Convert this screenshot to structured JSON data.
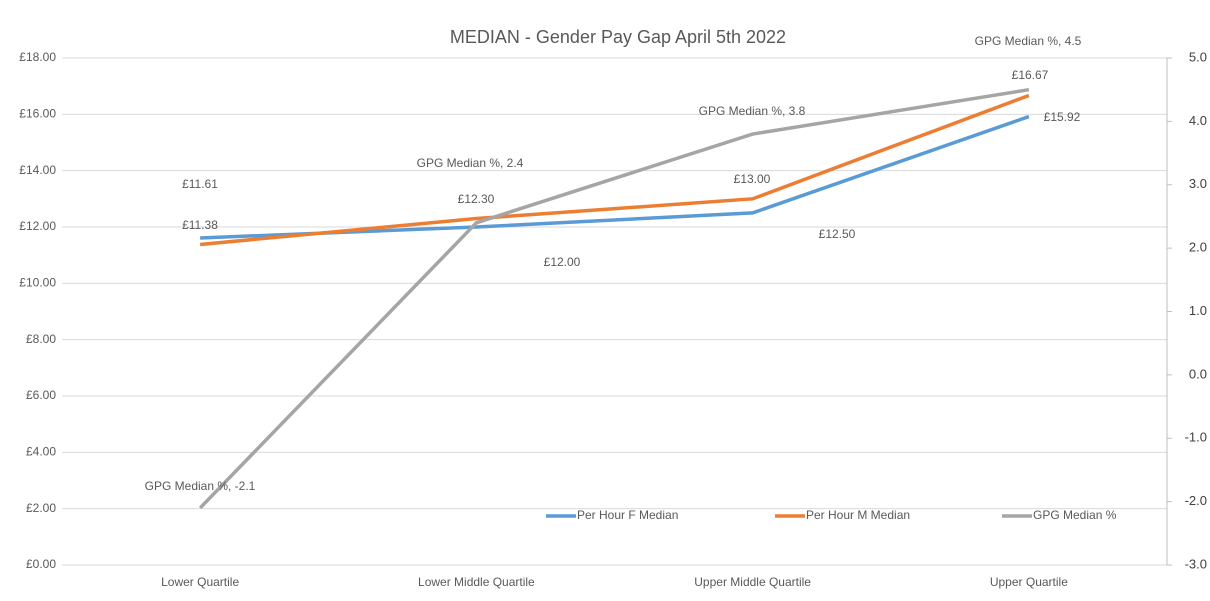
{
  "chart_data": {
    "type": "line",
    "title": "MEDIAN - Gender Pay Gap April 5th 2022",
    "categories": [
      "Lower Quartile",
      "Lower Middle Quartile",
      "Upper Middle Quartile",
      "Upper Quartile"
    ],
    "series": [
      {
        "name": "Per Hour F Median",
        "color": "#5b9bd5",
        "values": [
          11.61,
          12.0,
          12.5,
          15.92
        ],
        "value_labels": [
          "£11.61",
          "£12.00",
          "£12.50",
          "£15.92"
        ]
      },
      {
        "name": "Per Hour M Median",
        "color": "#ed7d31",
        "values": [
          11.38,
          12.3,
          13.0,
          16.67
        ],
        "value_labels": [
          "£11.38",
          "£12.30",
          "£13.00",
          "£16.67"
        ]
      },
      {
        "name": "GPG Median %",
        "color": "#a5a5a5",
        "axis": "y2",
        "values": [
          -2.1,
          2.4,
          3.8,
          4.5
        ],
        "value_labels": [
          "GPG Median %, -2.1",
          "GPG Median %, 2.4",
          "GPG Median %, 3.8",
          "GPG Median %, 4.5"
        ]
      }
    ],
    "ylim": [
      0,
      18
    ],
    "yticks": [
      {
        "value": 0,
        "label": "£0.00"
      },
      {
        "value": 2,
        "label": "£2.00"
      },
      {
        "value": 4,
        "label": "£4.00"
      },
      {
        "value": 6,
        "label": "£6.00"
      },
      {
        "value": 8,
        "label": "£8.00"
      },
      {
        "value": 10,
        "label": "£10.00"
      },
      {
        "value": 12,
        "label": "£12.00"
      },
      {
        "value": 14,
        "label": "£14.00"
      },
      {
        "value": 16,
        "label": "£16.00"
      },
      {
        "value": 18,
        "label": "£18.00"
      }
    ],
    "y2lim": [
      -3,
      5
    ],
    "y2ticks": [
      {
        "value": -3,
        "label": "-3.0"
      },
      {
        "value": -2,
        "label": "-2.0"
      },
      {
        "value": -1,
        "label": "-1.0"
      },
      {
        "value": 0,
        "label": "0.0"
      },
      {
        "value": 1,
        "label": "1.0"
      },
      {
        "value": 2,
        "label": "2.0"
      },
      {
        "value": 3,
        "label": "3.0"
      },
      {
        "value": 4,
        "label": "4.0"
      },
      {
        "value": 5,
        "label": "5.0"
      }
    ],
    "grid": true
  }
}
